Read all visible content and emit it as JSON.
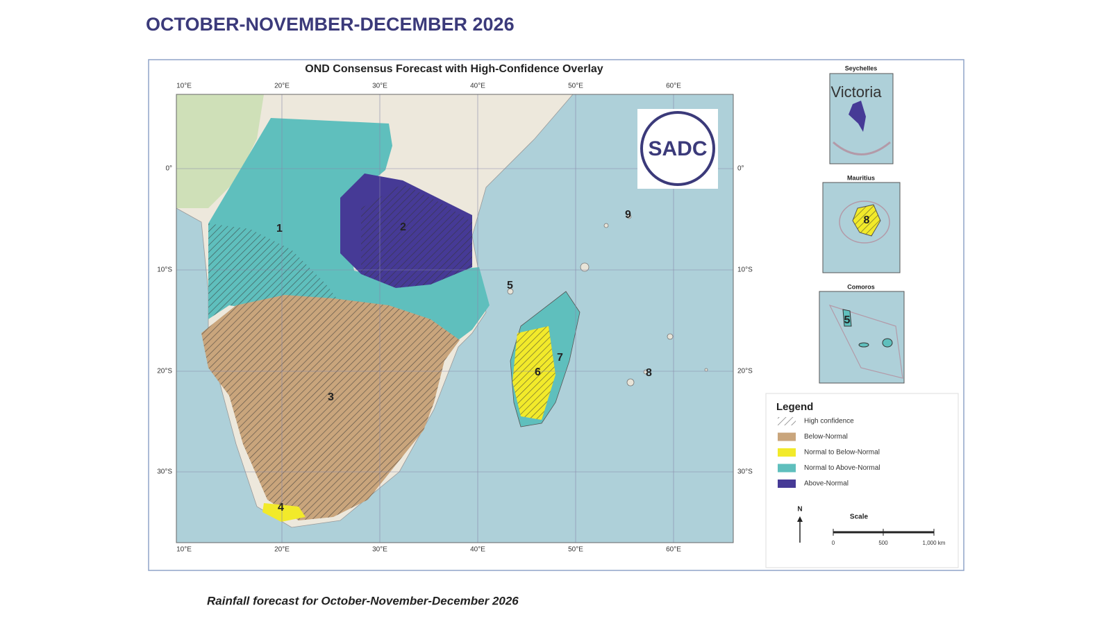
{
  "header": {
    "title": "OCTOBER-NOVEMBER-DECEMBER 2026"
  },
  "map": {
    "title": "OND Consensus Forecast with High-Confidence Overlay",
    "lon_labels": [
      "10°E",
      "20°E",
      "30°E",
      "40°E",
      "50°E",
      "60°E"
    ],
    "lat_labels": [
      "0°",
      "10°S",
      "20°S",
      "30°S"
    ],
    "zones": [
      "1",
      "2",
      "3",
      "4",
      "5",
      "6",
      "7",
      "8",
      "9"
    ],
    "logo": "SADC"
  },
  "insets": [
    {
      "title": "Seychelles",
      "label": "Victoria"
    },
    {
      "title": "Mauritius"
    },
    {
      "title": "Comoros"
    }
  ],
  "legend": {
    "title": "Legend",
    "items": [
      {
        "label": "High confidence"
      },
      {
        "label": "Below-Normal",
        "color": "#c9a57c"
      },
      {
        "label": "Normal to Below-Normal",
        "color": "#f2ea2a"
      },
      {
        "label": "Normal to Above-Normal",
        "color": "#5fbfbd"
      },
      {
        "label": "Above-Normal",
        "color": "#463a96"
      }
    ],
    "north": "N",
    "scale_title": "Scale",
    "scale_labels": [
      "0",
      "500",
      "1,000 km"
    ]
  },
  "caption": "Rainfall forecast for October-November-December 2026"
}
